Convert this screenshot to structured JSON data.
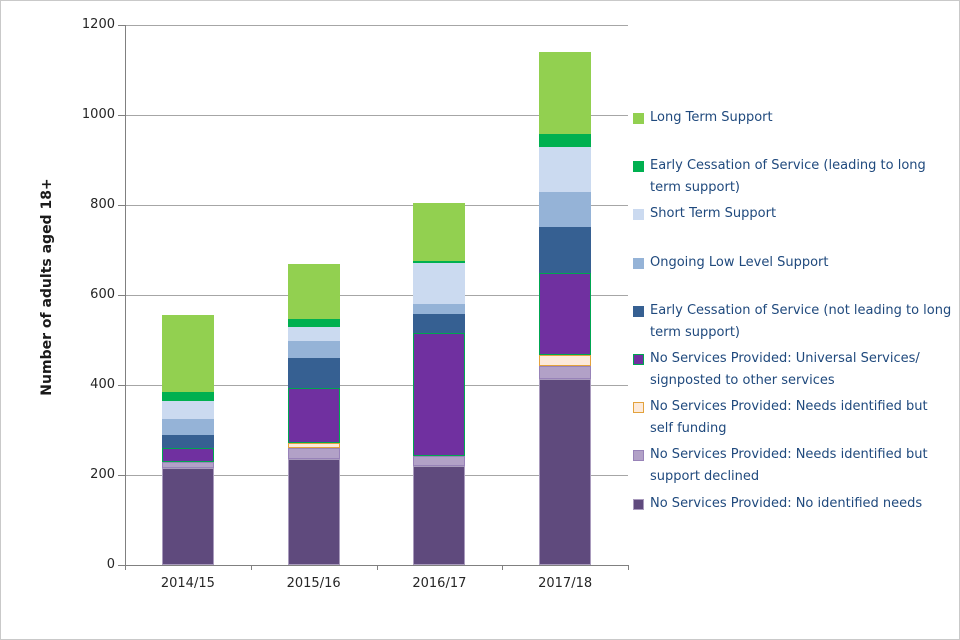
{
  "figure": {
    "background": "#ffffff",
    "frame_border_color": "#c9c9c9",
    "legend_text_color": "#1f497d",
    "axis_text_color": "#262626",
    "gridline_color": "#a6a6a6",
    "axis_line_color": "#808080"
  },
  "chart_data": {
    "type": "bar",
    "stacked": true,
    "title": "",
    "xlabel": "",
    "ylabel": "Number of adults aged 18+",
    "ylim": [
      0,
      1200
    ],
    "yticks": [
      0,
      200,
      400,
      600,
      800,
      1000,
      1200
    ],
    "grid": true,
    "legend_position": "right",
    "categories": [
      "2014/15",
      "2015/16",
      "2016/17",
      "2017/18"
    ],
    "series": [
      {
        "name": "No Services Provided: No identified needs",
        "color": "#5f4a7d",
        "border": "#a99bbd",
        "values": [
          215,
          235,
          220,
          413
        ]
      },
      {
        "name": "No Services Provided: Needs identified but\nsupport declined",
        "color": "#b2a1c7",
        "border": "#9883b8",
        "values": [
          15,
          24,
          22,
          29
        ]
      },
      {
        "name": "No Services Provided: Needs identified but\nself funding",
        "color": "#fdeada",
        "border": "#e3a23c",
        "values": [
          0,
          13,
          0,
          25
        ]
      },
      {
        "name": "No Services Provided: Universal Services/\nsignposted to other services",
        "color": "#7030a0",
        "border": "#00a651",
        "values": [
          30,
          121,
          273,
          181
        ]
      },
      {
        "name": "Early Cessation of Service (not leading to long\nterm support)",
        "color": "#366092",
        "border": "#366092",
        "values": [
          30,
          67,
          42,
          104
        ]
      },
      {
        "name": "Ongoing Low Level Support",
        "color": "#95b3d7",
        "border": "#95b3d7",
        "values": [
          35,
          37,
          24,
          78
        ]
      },
      {
        "name": "Short Term Support",
        "color": "#cbdaf0",
        "border": "#cbdaf0",
        "values": [
          40,
          31,
          90,
          98
        ]
      },
      {
        "name": "Early Cessation of Service (leading to long\nterm support)",
        "color": "#00b050",
        "border": "#00b050",
        "values": [
          20,
          19,
          5,
          29
        ]
      },
      {
        "name": "Long Term Support",
        "color": "#92d050",
        "border": "#92d050",
        "values": [
          170,
          123,
          128,
          184
        ]
      }
    ],
    "totals": [
      555,
      670,
      804,
      1141
    ]
  }
}
